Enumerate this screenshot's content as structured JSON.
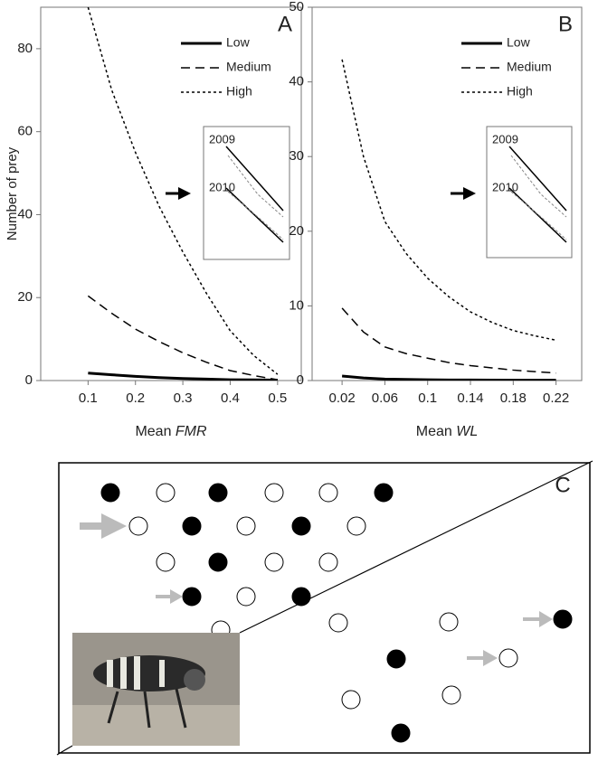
{
  "chart_data": [
    {
      "type": "line",
      "panel": "A",
      "ylabel": "Number of prey",
      "xlabel": {
        "text": "Mean",
        "italic": "FMR"
      },
      "x": [
        0.1,
        0.15,
        0.2,
        0.25,
        0.3,
        0.35,
        0.4,
        0.45,
        0.5
      ],
      "series": [
        {
          "name": "Low",
          "color": "#000000",
          "dash": "solid",
          "values": [
            1.8,
            1.4,
            1.0,
            0.7,
            0.5,
            0.35,
            0.2,
            0.15,
            0.1
          ]
        },
        {
          "name": "Medium",
          "color": "#000000",
          "dash": "dashed",
          "values": [
            20.4,
            16.2,
            12.4,
            9.4,
            6.7,
            4.4,
            2.4,
            1.2,
            0.2
          ]
        },
        {
          "name": "High",
          "color": "#000000",
          "dash": "dotted",
          "values": [
            90,
            70,
            55,
            42,
            31,
            21,
            12,
            6,
            1.5
          ]
        }
      ],
      "xlim": [
        0,
        0.55
      ],
      "xticks": [
        0.1,
        0.2,
        0.3,
        0.4,
        0.5
      ],
      "ylim": [
        0,
        90
      ],
      "yticks": [
        0,
        20,
        40,
        60,
        80
      ],
      "inset_labels": [
        "2009",
        "2010"
      ]
    },
    {
      "type": "line",
      "panel": "B",
      "xlabel": {
        "text": "Mean",
        "italic": "WL"
      },
      "x": [
        0.02,
        0.04,
        0.06,
        0.08,
        0.1,
        0.12,
        0.14,
        0.16,
        0.18,
        0.2,
        0.22
      ],
      "series": [
        {
          "name": "Low",
          "color": "#000000",
          "dash": "solid",
          "values": [
            0.6,
            0.35,
            0.2,
            0.15,
            0.1,
            0.08,
            0.07,
            0.06,
            0.05,
            0.05,
            0.05
          ]
        },
        {
          "name": "Medium",
          "color": "#000000",
          "dash": "dashed",
          "values": [
            9.7,
            6.5,
            4.5,
            3.6,
            3.0,
            2.4,
            2.0,
            1.7,
            1.4,
            1.2,
            1.0
          ]
        },
        {
          "name": "High",
          "color": "#000000",
          "dash": "dotted",
          "values": [
            43,
            30,
            21.3,
            17,
            13.7,
            11.2,
            9.2,
            7.8,
            6.7,
            6.0,
            5.4
          ]
        }
      ],
      "xlim": [
        -0.008,
        0.244
      ],
      "xticks": [
        0.02,
        0.06,
        0.1,
        0.14,
        0.18,
        0.22
      ],
      "ylim": [
        0,
        50
      ],
      "yticks": [
        0,
        10,
        20,
        30,
        40,
        50
      ],
      "inset_labels": [
        "2009",
        "2010"
      ]
    }
  ],
  "panel_c": {
    "label": "C"
  }
}
